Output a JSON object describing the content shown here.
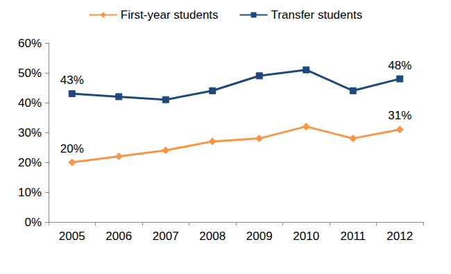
{
  "chart_data": {
    "type": "line",
    "categories": [
      "2005",
      "2006",
      "2007",
      "2008",
      "2009",
      "2010",
      "2011",
      "2012"
    ],
    "series": [
      {
        "name": "First-year students",
        "color": "#F79646",
        "marker": "diamond",
        "line_style": "solid",
        "values": [
          20,
          22,
          24,
          27,
          28,
          32,
          28,
          31
        ],
        "value_labels": [
          "20%",
          null,
          null,
          null,
          null,
          null,
          null,
          "31%"
        ]
      },
      {
        "name": "Transfer students",
        "color": "#1F497D",
        "marker": "square",
        "line_style": "solid",
        "values": [
          43,
          42,
          41,
          44,
          49,
          51,
          44,
          48
        ],
        "value_labels": [
          "43%",
          null,
          null,
          null,
          null,
          null,
          null,
          "48%"
        ]
      }
    ],
    "ylim": [
      0,
      60
    ],
    "yticks": [
      {
        "value": 0,
        "label": "0%"
      },
      {
        "value": 10,
        "label": "10%"
      },
      {
        "value": 20,
        "label": "20%"
      },
      {
        "value": 30,
        "label": "30%"
      },
      {
        "value": 40,
        "label": "40%"
      },
      {
        "value": 50,
        "label": "50%"
      },
      {
        "value": 60,
        "label": "60%"
      }
    ],
    "grid": false,
    "legend": "top",
    "data_labels": true
  }
}
